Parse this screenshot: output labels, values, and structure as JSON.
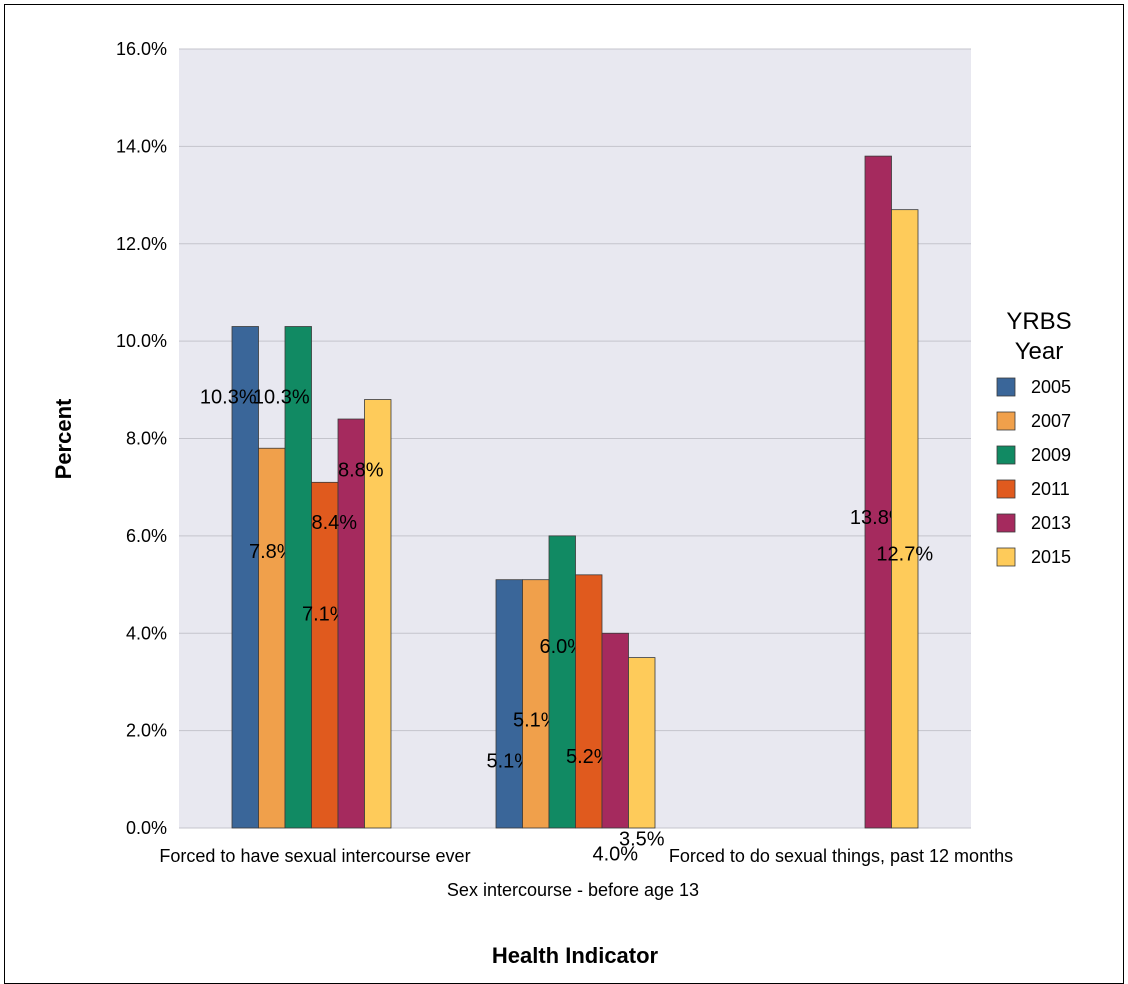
{
  "chart_data": {
    "type": "bar",
    "categories": [
      "Forced to have sexual intercourse ever",
      "Sex intercourse - before age 13",
      "Forced to do sexual things, past 12 months"
    ],
    "series": [
      {
        "name": "2005",
        "values": [
          10.3,
          5.1,
          null
        ],
        "labels": [
          "10.3%",
          "5.1%",
          ""
        ]
      },
      {
        "name": "2007",
        "values": [
          7.8,
          5.1,
          null
        ],
        "labels": [
          "7.8%",
          "5.1%",
          ""
        ]
      },
      {
        "name": "2009",
        "values": [
          10.3,
          6.0,
          null
        ],
        "labels": [
          "10.3%",
          "6.0%",
          ""
        ]
      },
      {
        "name": "2011",
        "values": [
          7.1,
          5.2,
          null
        ],
        "labels": [
          "7.1%",
          "5.2%",
          ""
        ]
      },
      {
        "name": "2013",
        "values": [
          8.4,
          4.0,
          13.8
        ],
        "labels": [
          "8.4%",
          "4.0%",
          "13.8%"
        ]
      },
      {
        "name": "2015",
        "values": [
          8.8,
          3.5,
          12.7
        ],
        "labels": [
          "8.8%",
          "3.5%",
          "12.7%"
        ]
      }
    ],
    "xlabel": "Health Indicator",
    "ylabel": "Percent",
    "ylim": [
      0,
      16
    ],
    "yticks": [
      "0.0%",
      "2.0%",
      "4.0%",
      "6.0%",
      "8.0%",
      "10.0%",
      "12.0%",
      "14.0%",
      "16.0%"
    ],
    "legend_title": "YRBS Year",
    "legend_position": "right",
    "grid": true,
    "colors": [
      "#3a6699",
      "#f0a04b",
      "#118a63",
      "#e05a1e",
      "#a52a5e",
      "#fecb5a"
    ],
    "plot_background": "#e8e8f0"
  }
}
